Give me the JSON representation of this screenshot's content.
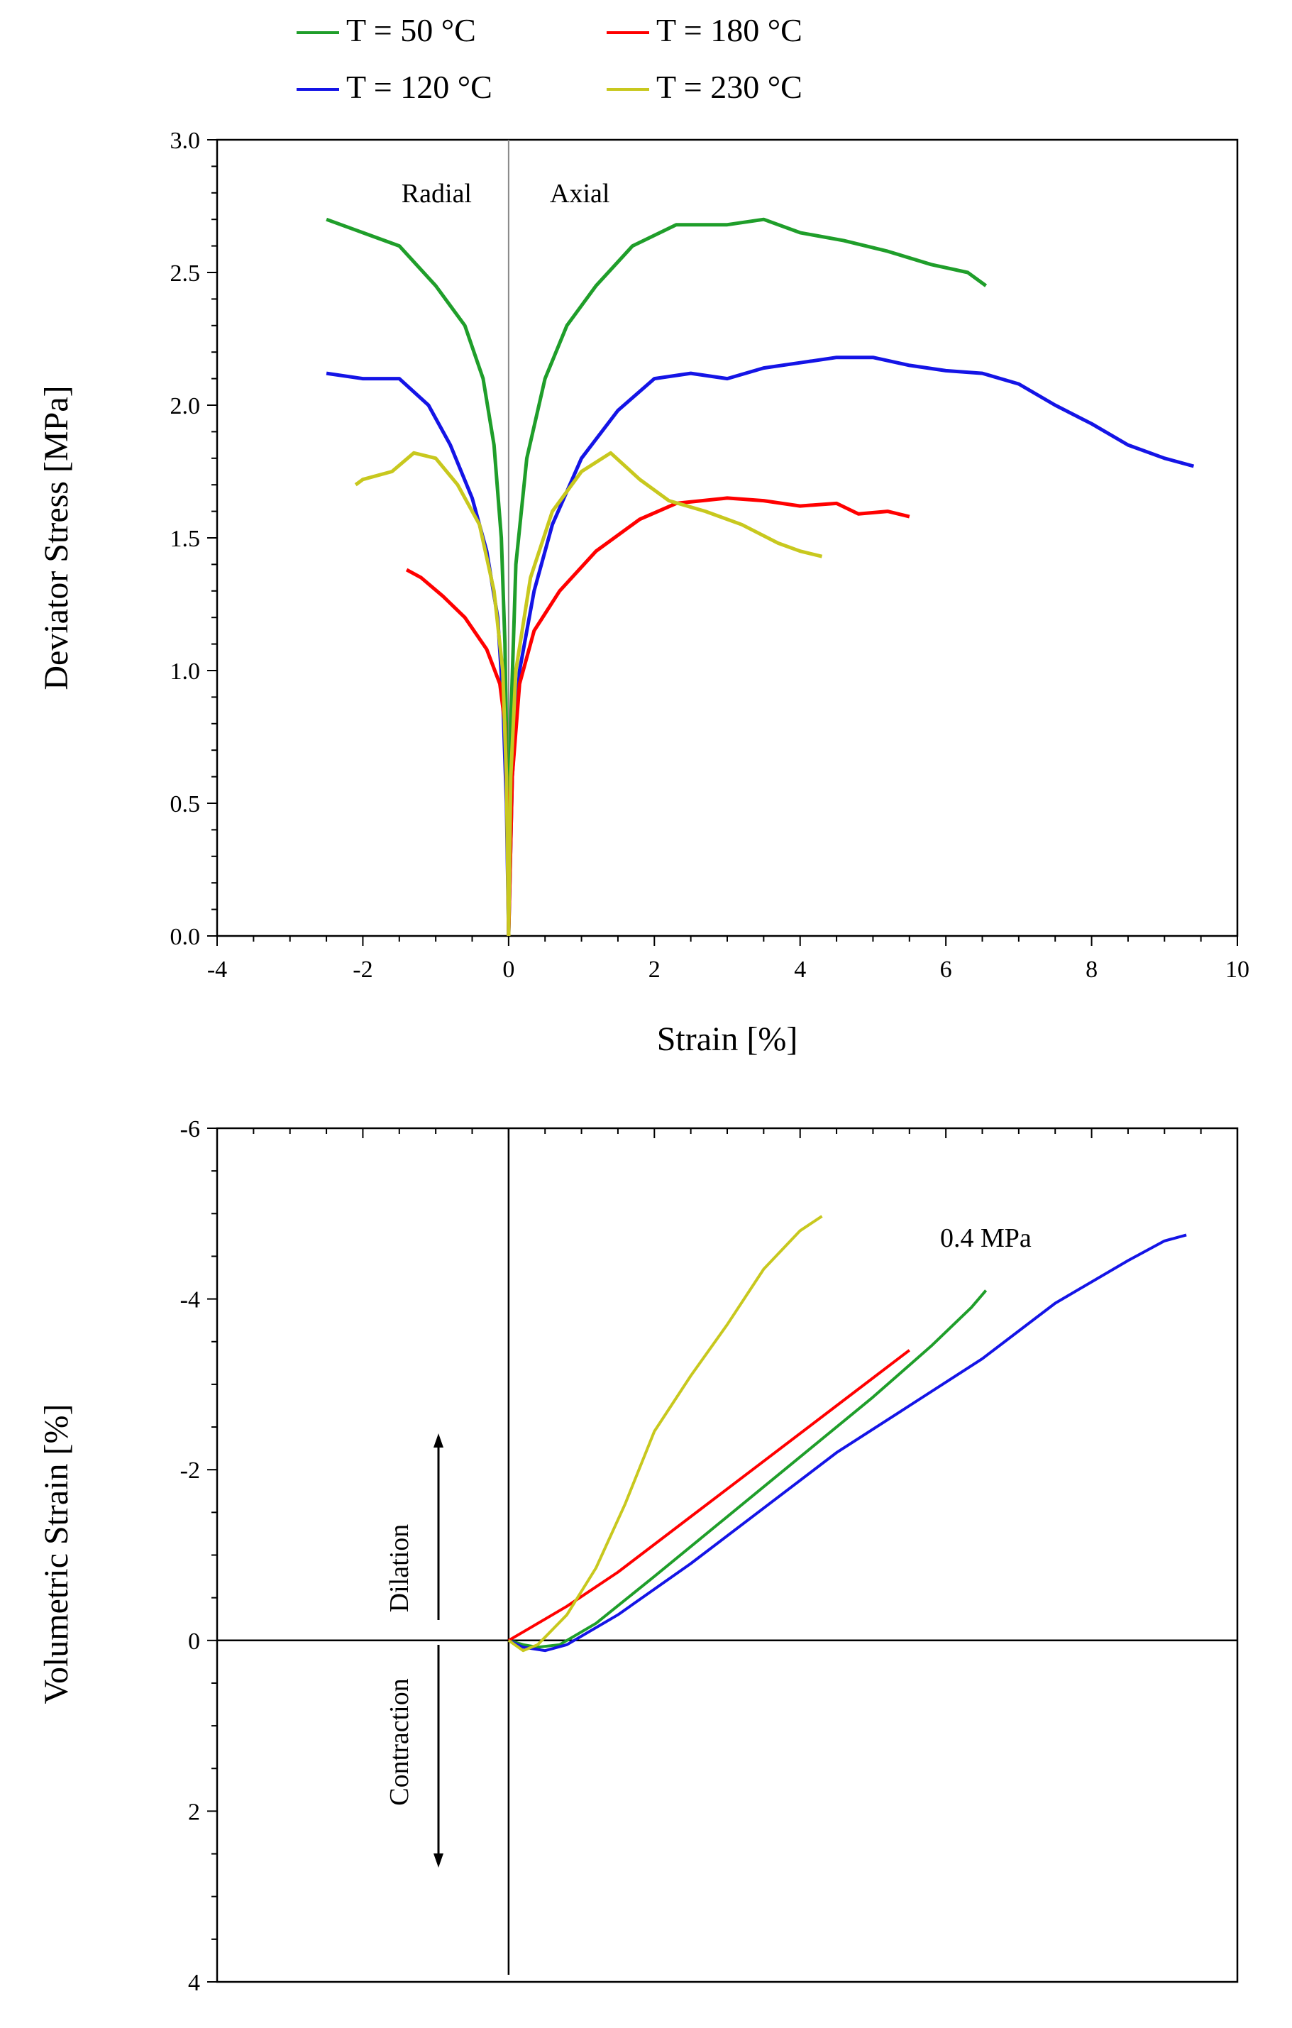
{
  "legend": {
    "items": [
      {
        "label": "T = 50 °C",
        "color": "#1f9e2a"
      },
      {
        "label": "T = 180 °C",
        "color": "#ff0000"
      },
      {
        "label": "T = 120 °C",
        "color": "#1414e6"
      },
      {
        "label": "T = 230 °C",
        "color": "#c8c81e"
      }
    ]
  },
  "chart_data": [
    {
      "type": "line",
      "title": "",
      "xlabel": "Strain [%]",
      "ylabel": "Deviator Stress [MPa]",
      "xlim": [
        -4,
        10
      ],
      "ylim": [
        0,
        3.0
      ],
      "xticks": [
        "-4",
        "-2",
        "0",
        "2",
        "4",
        "6",
        "8",
        "10"
      ],
      "yticks": [
        "0.0",
        "0.5",
        "1.0",
        "1.5",
        "2.0",
        "2.5",
        "3.0"
      ],
      "annotations": {
        "left": "Radial",
        "right": "Axial"
      },
      "series": [
        {
          "name": "T = 50 °C",
          "color": "#1f9e2a",
          "radial": [
            [
              0,
              0
            ],
            [
              -0.02,
              0.6
            ],
            [
              -0.05,
              1.1
            ],
            [
              -0.1,
              1.5
            ],
            [
              -0.2,
              1.85
            ],
            [
              -0.35,
              2.1
            ],
            [
              -0.6,
              2.3
            ],
            [
              -1.0,
              2.45
            ],
            [
              -1.5,
              2.6
            ],
            [
              -2.0,
              2.65
            ],
            [
              -2.5,
              2.7
            ]
          ],
          "axial": [
            [
              0,
              0
            ],
            [
              0.03,
              0.8
            ],
            [
              0.1,
              1.4
            ],
            [
              0.25,
              1.8
            ],
            [
              0.5,
              2.1
            ],
            [
              0.8,
              2.3
            ],
            [
              1.2,
              2.45
            ],
            [
              1.7,
              2.6
            ],
            [
              2.3,
              2.68
            ],
            [
              3.0,
              2.68
            ],
            [
              3.5,
              2.7
            ],
            [
              4.0,
              2.65
            ],
            [
              4.6,
              2.62
            ],
            [
              5.2,
              2.58
            ],
            [
              5.8,
              2.53
            ],
            [
              6.3,
              2.5
            ],
            [
              6.55,
              2.45
            ]
          ]
        },
        {
          "name": "T = 120 °C",
          "color": "#1414e6",
          "radial": [
            [
              0,
              0
            ],
            [
              -0.03,
              0.5
            ],
            [
              -0.08,
              0.9
            ],
            [
              -0.15,
              1.2
            ],
            [
              -0.3,
              1.45
            ],
            [
              -0.5,
              1.65
            ],
            [
              -0.8,
              1.85
            ],
            [
              -1.1,
              2.0
            ],
            [
              -1.5,
              2.1
            ],
            [
              -2.0,
              2.1
            ],
            [
              -2.5,
              2.12
            ]
          ],
          "axial": [
            [
              0,
              0
            ],
            [
              0.05,
              0.6
            ],
            [
              0.15,
              1.0
            ],
            [
              0.35,
              1.3
            ],
            [
              0.6,
              1.55
            ],
            [
              1.0,
              1.8
            ],
            [
              1.5,
              1.98
            ],
            [
              2.0,
              2.1
            ],
            [
              2.5,
              2.12
            ],
            [
              3.0,
              2.1
            ],
            [
              3.5,
              2.14
            ],
            [
              4.0,
              2.16
            ],
            [
              4.5,
              2.18
            ],
            [
              5.0,
              2.18
            ],
            [
              5.5,
              2.15
            ],
            [
              6.0,
              2.13
            ],
            [
              6.5,
              2.12
            ],
            [
              7.0,
              2.08
            ],
            [
              7.5,
              2.0
            ],
            [
              8.0,
              1.93
            ],
            [
              8.5,
              1.85
            ],
            [
              9.0,
              1.8
            ],
            [
              9.4,
              1.77
            ]
          ]
        },
        {
          "name": "T = 180 °C",
          "color": "#ff0000",
          "radial": [
            [
              0,
              0
            ],
            [
              -0.02,
              0.5
            ],
            [
              -0.05,
              0.8
            ],
            [
              -0.12,
              0.95
            ],
            [
              -0.3,
              1.08
            ],
            [
              -0.6,
              1.2
            ],
            [
              -0.9,
              1.28
            ],
            [
              -1.2,
              1.35
            ],
            [
              -1.4,
              1.38
            ]
          ],
          "axial": [
            [
              0,
              0
            ],
            [
              0.05,
              0.6
            ],
            [
              0.15,
              0.95
            ],
            [
              0.35,
              1.15
            ],
            [
              0.7,
              1.3
            ],
            [
              1.2,
              1.45
            ],
            [
              1.8,
              1.57
            ],
            [
              2.3,
              1.63
            ],
            [
              3.0,
              1.65
            ],
            [
              3.5,
              1.64
            ],
            [
              4.0,
              1.62
            ],
            [
              4.5,
              1.63
            ],
            [
              4.8,
              1.59
            ],
            [
              5.2,
              1.6
            ],
            [
              5.5,
              1.58
            ]
          ]
        },
        {
          "name": "T = 230 °C",
          "color": "#c8c81e",
          "radial": [
            [
              0,
              0
            ],
            [
              -0.03,
              0.6
            ],
            [
              -0.08,
              1.0
            ],
            [
              -0.2,
              1.3
            ],
            [
              -0.4,
              1.55
            ],
            [
              -0.7,
              1.7
            ],
            [
              -1.0,
              1.8
            ],
            [
              -1.3,
              1.82
            ],
            [
              -1.6,
              1.75
            ],
            [
              -2.0,
              1.72
            ],
            [
              -2.1,
              1.7
            ]
          ],
          "axial": [
            [
              0,
              0
            ],
            [
              0.03,
              0.6
            ],
            [
              0.1,
              1.0
            ],
            [
              0.3,
              1.35
            ],
            [
              0.6,
              1.6
            ],
            [
              1.0,
              1.75
            ],
            [
              1.4,
              1.82
            ],
            [
              1.8,
              1.72
            ],
            [
              2.2,
              1.64
            ],
            [
              2.7,
              1.6
            ],
            [
              3.2,
              1.55
            ],
            [
              3.7,
              1.48
            ],
            [
              4.0,
              1.45
            ],
            [
              4.3,
              1.43
            ]
          ]
        }
      ]
    },
    {
      "type": "line",
      "title": "",
      "xlabel": "",
      "ylabel": "Volumetric Strain [%]",
      "xlim": [
        -4,
        10
      ],
      "ylim": [
        4,
        -6
      ],
      "yticks": [
        "-6",
        "-4",
        "-2",
        "0",
        "2",
        "4"
      ],
      "annotations": {
        "pressure": "0.4  MPa",
        "up": "Dilation",
        "down": "Contraction"
      },
      "series": [
        {
          "name": "T = 50 °C",
          "color": "#1f9e2a",
          "x": [
            0,
            0.2,
            0.4,
            0.7,
            1.2,
            2.0,
            3.0,
            4.0,
            5.0,
            5.8,
            6.35,
            6.5,
            6.55
          ],
          "y": [
            0,
            0.05,
            0.08,
            0.05,
            -0.2,
            -0.75,
            -1.45,
            -2.15,
            -2.85,
            -3.45,
            -3.9,
            -4.05,
            -4.1
          ]
        },
        {
          "name": "T = 120 °C",
          "color": "#1414e6",
          "x": [
            0,
            0.2,
            0.5,
            0.8,
            1.5,
            2.5,
            3.5,
            4.5,
            5.5,
            6.5,
            7.5,
            8.5,
            9.0,
            9.3
          ],
          "y": [
            0,
            0.08,
            0.12,
            0.05,
            -0.3,
            -0.9,
            -1.55,
            -2.2,
            -2.75,
            -3.3,
            -3.95,
            -4.45,
            -4.68,
            -4.75
          ]
        },
        {
          "name": "T = 180 °C",
          "color": "#ff0000",
          "x": [
            0,
            0.3,
            0.8,
            1.5,
            2.5,
            3.5,
            4.5,
            5.5
          ],
          "y": [
            0,
            -0.15,
            -0.4,
            -0.8,
            -1.45,
            -2.1,
            -2.75,
            -3.4
          ]
        },
        {
          "name": "T = 230 °C",
          "color": "#c8c81e",
          "x": [
            0,
            0.2,
            0.4,
            0.8,
            1.2,
            1.6,
            2.0,
            2.5,
            3.0,
            3.5,
            4.0,
            4.3
          ],
          "y": [
            0,
            0.12,
            0.05,
            -0.3,
            -0.85,
            -1.6,
            -2.45,
            -3.1,
            -3.7,
            -4.35,
            -4.8,
            -4.97
          ]
        }
      ]
    }
  ]
}
